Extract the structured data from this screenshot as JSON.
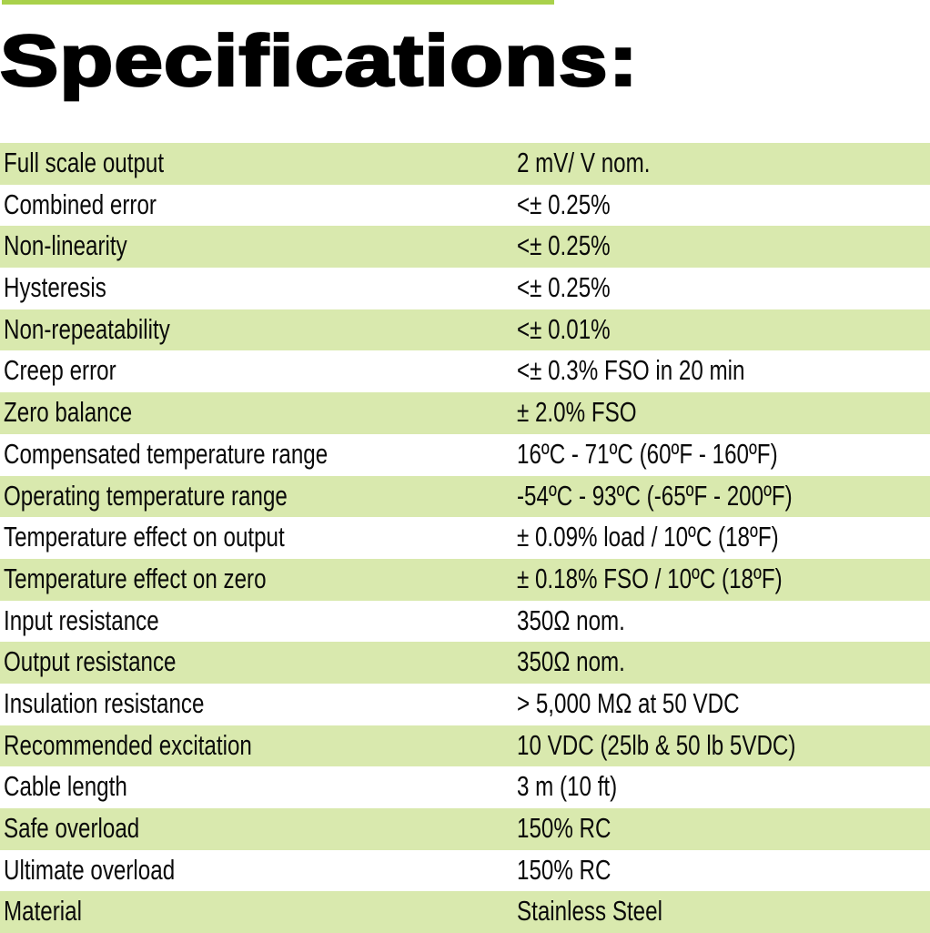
{
  "header": {
    "accent_bar_color": "#a9d14b",
    "title": "Specifications:"
  },
  "colors": {
    "row_shade": "#d9e9ae",
    "text": "#0a0a0a"
  },
  "specs": [
    {
      "label": "Full scale output",
      "value": "2 mV/ V nom."
    },
    {
      "label": "Combined error",
      "value": "<± 0.25%"
    },
    {
      "label": "Non-linearity",
      "value": "<± 0.25%"
    },
    {
      "label": "Hysteresis",
      "value": "<± 0.25%"
    },
    {
      "label": "Non-repeatability",
      "value": "<± 0.01%"
    },
    {
      "label": "Creep error",
      "value": "<± 0.3% FSO in 20 min"
    },
    {
      "label": "Zero balance",
      "value": "± 2.0% FSO"
    },
    {
      "label": "Compensated temperature range",
      "value": "16ºC - 71ºC (60ºF - 160ºF)"
    },
    {
      "label": "Operating temperature range",
      "value": "-54ºC - 93ºC (-65ºF - 200ºF)"
    },
    {
      "label": "Temperature effect on output",
      "value": "± 0.09% load / 10ºC (18ºF)"
    },
    {
      "label": "Temperature effect on zero",
      "value": "± 0.18% FSO / 10ºC (18ºF)"
    },
    {
      "label": "Input resistance",
      "value": "350Ω nom."
    },
    {
      "label": "Output resistance",
      "value": "350Ω nom."
    },
    {
      "label": "Insulation resistance",
      "value": "> 5,000 MΩ at 50 VDC"
    },
    {
      "label": "Recommended excitation",
      "value": "10 VDC (25lb & 50 lb 5VDC)"
    },
    {
      "label": "Cable length",
      "value": "3 m (10 ft)"
    },
    {
      "label": "Safe overload",
      "value": "150% RC"
    },
    {
      "label": "Ultimate overload",
      "value": "150%  RC"
    },
    {
      "label": "Material",
      "value": "Stainless Steel"
    }
  ]
}
